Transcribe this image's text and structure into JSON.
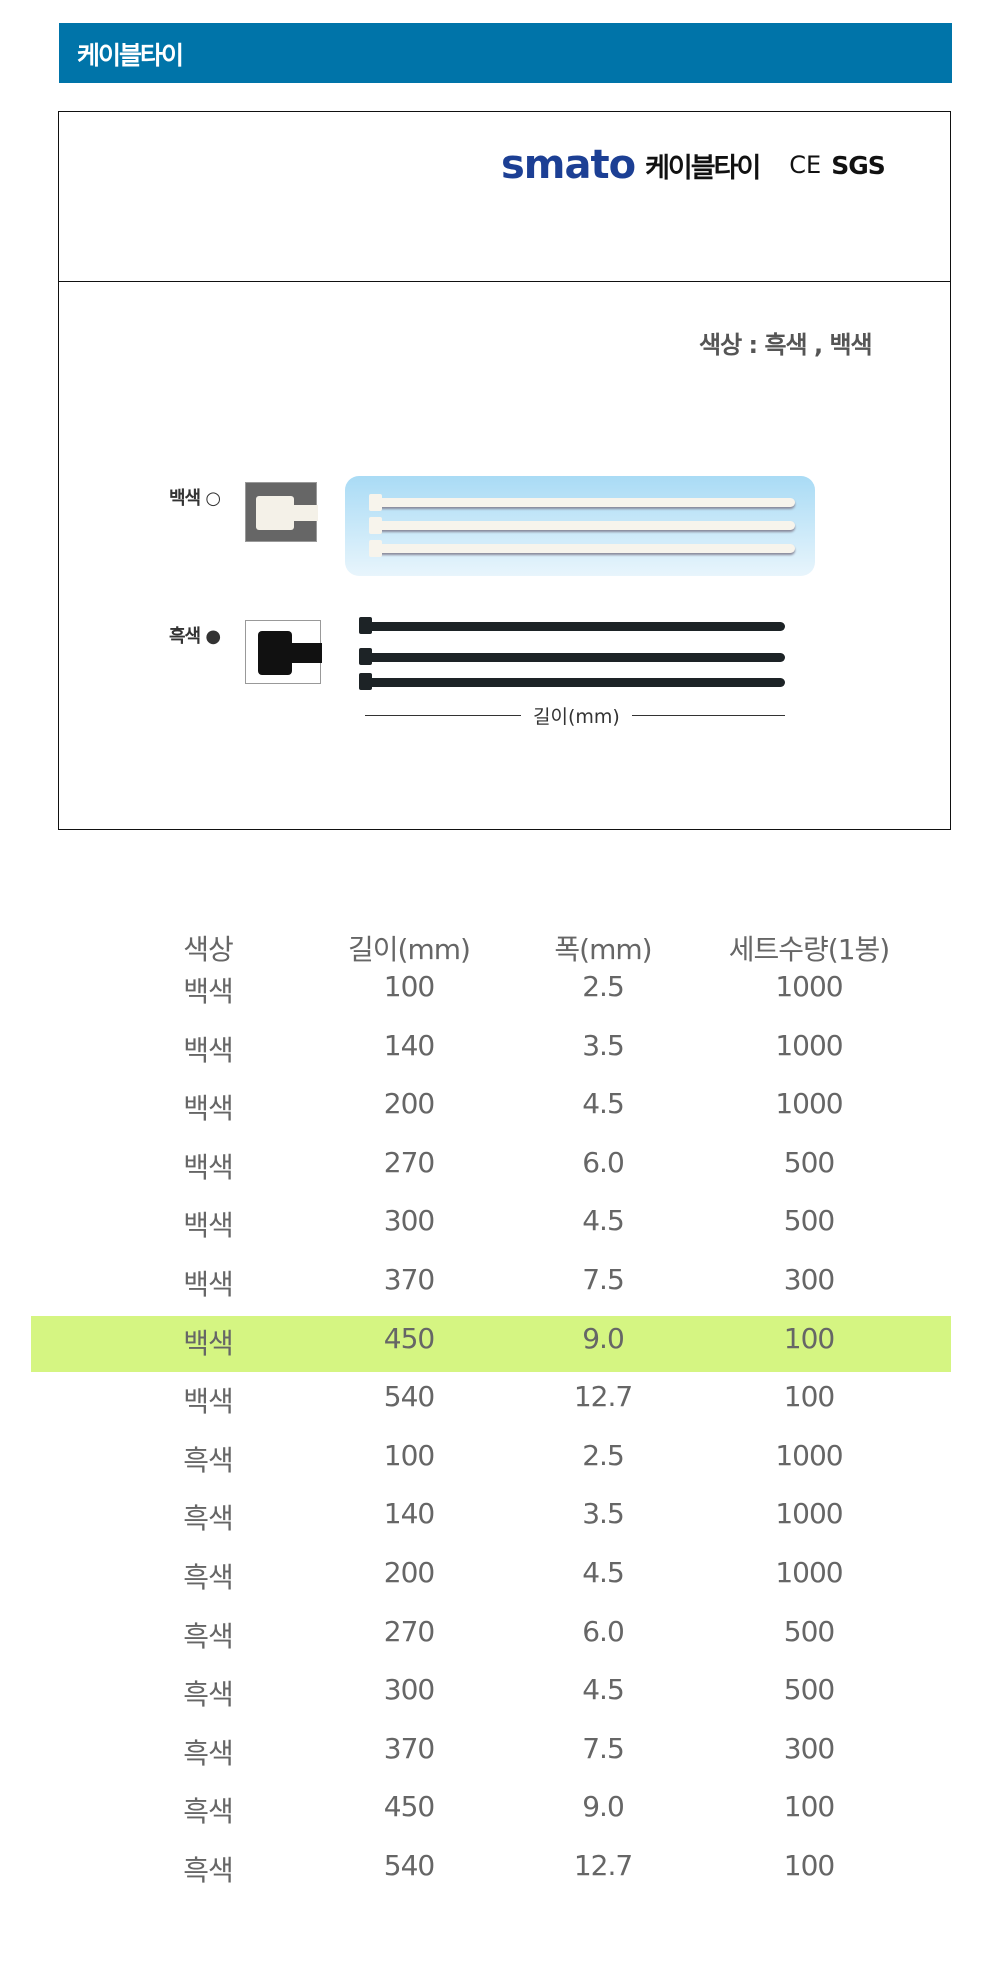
{
  "header": {
    "title": "케이블타이"
  },
  "banner": {
    "brand": "smato",
    "product": "케이블타이",
    "cert1": "CE",
    "cert2": "SGS"
  },
  "product_image": {
    "colors_text": "색상 : 흑색 , 백색",
    "white_label": "백색 ○",
    "black_label": "흑색 ●",
    "length_label": "길이(mm)"
  },
  "table": {
    "columns": [
      "색상",
      "길이(mm)",
      "폭(mm)",
      "세트수량(1봉)"
    ],
    "highlight_row": 6,
    "highlight_color": "#d5f582",
    "rows": [
      [
        "백색",
        "100",
        "2.5",
        "1000"
      ],
      [
        "백색",
        "140",
        "3.5",
        "1000"
      ],
      [
        "백색",
        "200",
        "4.5",
        "1000"
      ],
      [
        "백색",
        "270",
        "6.0",
        "500"
      ],
      [
        "백색",
        "300",
        "4.5",
        "500"
      ],
      [
        "백색",
        "370",
        "7.5",
        "300"
      ],
      [
        "백색",
        "450",
        "9.0",
        "100"
      ],
      [
        "백색",
        "540",
        "12.7",
        "100"
      ],
      [
        "흑색",
        "100",
        "2.5",
        "1000"
      ],
      [
        "흑색",
        "140",
        "3.5",
        "1000"
      ],
      [
        "흑색",
        "200",
        "4.5",
        "1000"
      ],
      [
        "흑색",
        "270",
        "6.0",
        "500"
      ],
      [
        "흑색",
        "300",
        "4.5",
        "500"
      ],
      [
        "흑색",
        "370",
        "7.5",
        "300"
      ],
      [
        "흑색",
        "450",
        "9.0",
        "100"
      ],
      [
        "흑색",
        "540",
        "12.7",
        "100"
      ]
    ]
  }
}
